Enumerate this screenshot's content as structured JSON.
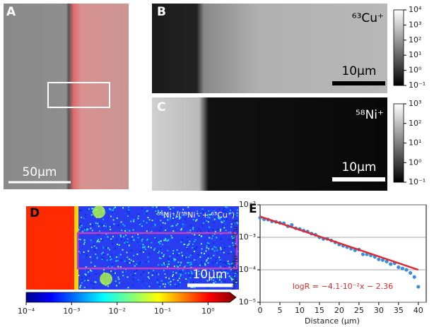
{
  "panels": {
    "A": {
      "label": "A",
      "scale": "50μm"
    },
    "B": {
      "label": "B",
      "ion": "⁶³Cu⁺",
      "scale": "10μm",
      "colorbar": {
        "log": true,
        "lim": [
          0.1,
          10000
        ],
        "ticks": [
          {
            "value": 10000,
            "label": "10⁴"
          },
          {
            "value": 1000,
            "label": "10³"
          },
          {
            "value": 100,
            "label": "10²"
          },
          {
            "value": 10,
            "label": "10¹"
          },
          {
            "value": 1,
            "label": "10⁰"
          },
          {
            "value": 0.1,
            "label": "10⁻¹"
          }
        ]
      }
    },
    "C": {
      "label": "C",
      "ion": "⁵⁸Ni⁺",
      "scale": "10μm",
      "colorbar": {
        "log": true,
        "lim": [
          0.1,
          1000
        ],
        "ticks": [
          {
            "value": 1000,
            "label": "10³"
          },
          {
            "value": 100,
            "label": "10²"
          },
          {
            "value": 10,
            "label": "10¹"
          },
          {
            "value": 1,
            "label": "10⁰"
          },
          {
            "value": 0.1,
            "label": "10⁻¹"
          }
        ]
      }
    },
    "D": {
      "label": "D",
      "ratio": "⁵⁸Ni⁺/(⁵⁸Ni⁺ + ⁶³Cu⁺)",
      "scale": "10μm",
      "colorbar": {
        "log": true,
        "lim": [
          0.0001,
          3
        ],
        "ticks": [
          {
            "value": 0.0001,
            "label": "10⁻⁴"
          },
          {
            "value": 0.001,
            "label": "10⁻³"
          },
          {
            "value": 0.01,
            "label": "10⁻²"
          },
          {
            "value": 0.1,
            "label": "10⁻¹"
          },
          {
            "value": 1,
            "label": "10⁰"
          }
        ]
      }
    }
  },
  "chart_data": [
    {
      "type": "scatter",
      "panel_label": "E",
      "x_label": "Distance (μm)",
      "y_label": "⁵⁸Ni⁺/(⁵⁸Ni⁺ + ⁶³Cu⁺)",
      "annotation": "logR = −4.1·10⁻²x − 2.36",
      "xlim": [
        0,
        42
      ],
      "xticks": [
        0,
        5,
        10,
        15,
        20,
        25,
        30,
        35,
        40
      ],
      "ylog": true,
      "ylim": [
        1e-05,
        0.01
      ],
      "yticks": [
        {
          "value": 1e-05,
          "label": "10⁻⁵"
        },
        {
          "value": 0.0001,
          "label": "10⁻⁴"
        },
        {
          "value": 0.001,
          "label": "10⁻³"
        },
        {
          "value": 0.01,
          "label": "10⁻²"
        }
      ],
      "grid": true,
      "series": [
        {
          "type": "scatter",
          "color": "#3a8dde",
          "x": [
            0,
            1,
            2,
            3,
            4,
            5,
            6,
            7,
            8,
            9,
            10,
            11,
            12,
            13,
            14,
            15,
            16,
            17,
            18,
            19,
            20,
            21,
            22,
            23,
            24,
            25,
            26,
            27,
            28,
            29,
            30,
            31,
            32,
            33,
            34,
            35,
            36,
            37,
            38,
            39,
            40
          ],
          "values": [
            0.004,
            0.0036,
            0.0035,
            0.0031,
            0.003,
            0.0028,
            0.0027,
            0.0022,
            0.0024,
            0.0019,
            0.0018,
            0.0016,
            0.0015,
            0.0013,
            0.0012,
            0.001,
            0.0009,
            0.0009,
            0.0008,
            0.0007,
            0.0006,
            0.00055,
            0.0005,
            0.00045,
            0.0004,
            0.00042,
            0.0003,
            0.0003,
            0.00028,
            0.00025,
            0.00021,
            0.0002,
            0.00018,
            0.00015,
            0.00016,
            0.00012,
            0.00011,
            0.0001,
            8e-05,
            6e-05,
            3e-05
          ]
        },
        {
          "type": "line",
          "color": "#e0282e",
          "x": [
            0,
            40
          ],
          "values": [
            0.00437,
            0.0001
          ]
        }
      ]
    }
  ]
}
